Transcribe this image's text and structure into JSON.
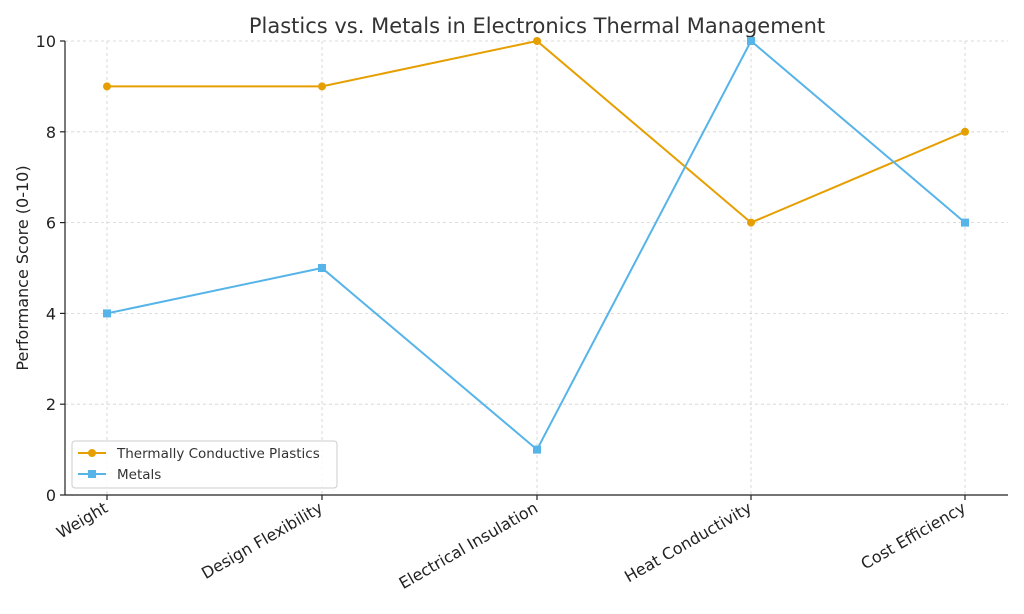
{
  "chart_data": {
    "type": "line",
    "title": "Plastics vs. Metals in Electronics Thermal Management",
    "xlabel": "",
    "ylabel": "Performance Score (0-10)",
    "categories": [
      "Weight",
      "Design Flexibility",
      "Electrical Insulation",
      "Heat Conductivity",
      "Cost Efficiency"
    ],
    "ylim": [
      0,
      10
    ],
    "yticks": [
      0,
      2,
      4,
      6,
      8,
      10
    ],
    "grid": true,
    "legend_position": "lower-left",
    "series": [
      {
        "name": "Thermally Conductive Plastics",
        "values": [
          9,
          9,
          10,
          6,
          8
        ],
        "color": "#E69F00",
        "marker": "circle"
      },
      {
        "name": "Metals",
        "values": [
          4,
          5,
          1,
          10,
          6
        ],
        "color": "#56B4E9",
        "marker": "square"
      }
    ]
  }
}
